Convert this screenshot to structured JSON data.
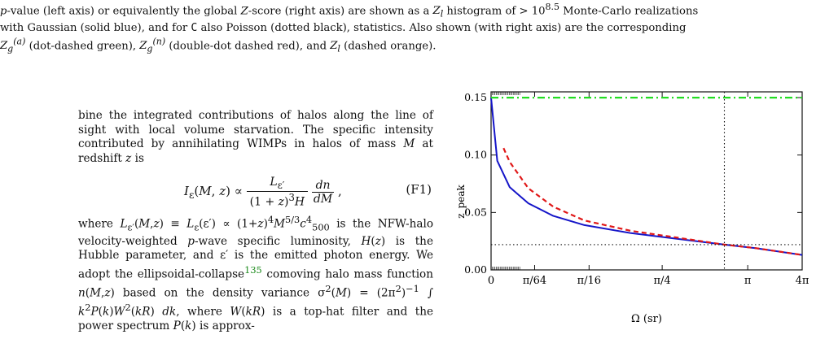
{
  "caption": {
    "line1": "p-value (left axis) or equivalently the global Z-score (right axis) are shown as a Z_l histogram of > 10^8.5 Monte-Carlo realizations",
    "line2": "with Gaussian (solid blue), and for C also Poisson (dotted black), statistics. Also shown (with right axis) are the corresponding",
    "line3": "Z_g^(a) (dot-dashed green), Z_g^(n) (double-dot dashed red), and Z_l (dashed orange)."
  },
  "body": {
    "para1": "bine the integrated contributions of halos along the line of sight with local volume starvation. The specific intensity contributed by annihilating WIMPs in halos of mass M at redshift z is",
    "equation": "I_ε(M, z) ∝ L_ε′ / ((1 + z)^3 H) · dn/dM ,",
    "equation_number": "(F1)",
    "para2": "where L_ε′(M,z) ≡ L_ε(ε′) ∝ (1+z)^4 M^5/3 c_500^4 is the NFW-halo velocity-weighted p-wave specific luminosity, H(z) is the Hubble parameter, and ε′ is the emitted photon energy. We adopt the ellipsoidal-collapse^135 comoving halo mass function n(M,z) based on the density variance σ^2(M) = (2π^2)^-1 ∫ k^2 P(k) W^2(kR) dk, where W(kR) is a top-hat filter and the power spectrum P(k) is approx-"
  },
  "chart_data": {
    "type": "line",
    "xlabel": "Ω (sr)",
    "ylabel": "z_peak",
    "x_tick_labels": [
      "0",
      "π/64",
      "π/16",
      "π/4",
      "π",
      "4π"
    ],
    "y_tick_labels": [
      "0.00",
      "0.05",
      "0.10",
      "0.15"
    ],
    "ylim": [
      0,
      0.155
    ],
    "series": [
      {
        "style": "solid",
        "color": "#1515c8",
        "x": [
          0.0,
          0.02,
          0.06,
          0.12,
          0.2,
          0.3,
          0.45,
          0.6,
          0.75,
          0.85,
          1.0
        ],
        "y": [
          0.15,
          0.095,
          0.072,
          0.058,
          0.047,
          0.039,
          0.032,
          0.027,
          0.022,
          0.019,
          0.013
        ]
      },
      {
        "style": "dashed",
        "color": "#e01818",
        "x": [
          0.04,
          0.06,
          0.12,
          0.2,
          0.3,
          0.45,
          0.6,
          0.75,
          0.85,
          1.0
        ],
        "y": [
          0.106,
          0.094,
          0.071,
          0.055,
          0.043,
          0.034,
          0.028,
          0.022,
          0.019,
          0.013
        ]
      },
      {
        "style": "dot-dashed",
        "color": "#22dd22",
        "x": [
          0.0,
          1.0
        ],
        "y": [
          0.15,
          0.15
        ]
      }
    ],
    "annotations": {
      "vertical_dotted_x": 0.75,
      "horizontal_dotted_y": 0.022
    }
  }
}
